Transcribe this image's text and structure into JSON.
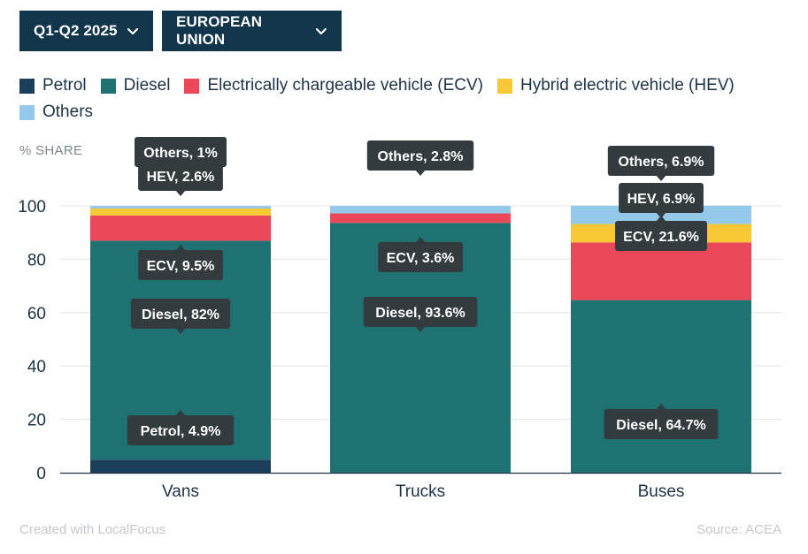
{
  "filters": {
    "period": "Q1-Q2 2025",
    "region": "EUROPEAN UNION",
    "chevron_icon": "chevron-down-icon"
  },
  "legend": [
    {
      "label": "Petrol",
      "color": "#1b3f5a"
    },
    {
      "label": "Diesel",
      "color": "#1e7272"
    },
    {
      "label": "Electrically chargeable vehicle (ECV)",
      "color": "#ea4858"
    },
    {
      "label": "Hybrid electric vehicle (HEV)",
      "color": "#f8c933"
    },
    {
      "label": "Others",
      "color": "#95c9ea"
    }
  ],
  "footer": {
    "credit": "Created with LocalFocus",
    "source": "Source:  ACEA"
  },
  "chart_data": {
    "type": "bar",
    "stacked": true,
    "ylabel": "% SHARE",
    "ylim": [
      0,
      100
    ],
    "yticks": [
      0,
      20,
      40,
      60,
      80,
      100
    ],
    "grid": true,
    "legend_position": "top",
    "categories": [
      "Vans",
      "Trucks",
      "Buses"
    ],
    "series": [
      {
        "name": "Petrol",
        "color": "#1b3f5a",
        "values": [
          4.9,
          0,
          0
        ],
        "tooltips": [
          "Petrol, 4.9%",
          null,
          null
        ]
      },
      {
        "name": "Diesel",
        "color": "#1e7272",
        "values": [
          82,
          93.6,
          64.7
        ],
        "tooltips": [
          "Diesel, 82%",
          "Diesel, 93.6%",
          "Diesel, 64.7%"
        ]
      },
      {
        "name": "Electrically chargeable vehicle (ECV)",
        "color": "#ea4858",
        "values": [
          9.5,
          3.6,
          21.6
        ],
        "tooltips": [
          "ECV, 9.5%",
          "ECV, 3.6%",
          "ECV, 21.6%"
        ]
      },
      {
        "name": "Hybrid electric vehicle (HEV)",
        "color": "#f8c933",
        "values": [
          2.6,
          0,
          6.9
        ],
        "tooltips": [
          "HEV, 2.6%",
          null,
          "HEV, 6.9%"
        ]
      },
      {
        "name": "Others",
        "color": "#95c9ea",
        "values": [
          1,
          2.8,
          6.9
        ],
        "tooltips": [
          "Others, 1%",
          "Others, 2.8%",
          "Others, 6.9%"
        ]
      }
    ]
  }
}
